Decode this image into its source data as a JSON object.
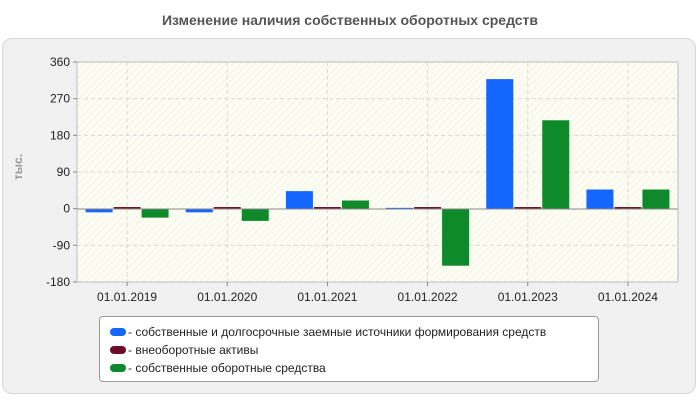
{
  "page": {
    "title": "Изменение наличия собственных оборотных средств"
  },
  "chart_data": {
    "type": "bar",
    "title": "Изменение наличия собственных оборотных средств",
    "xlabel": "",
    "ylabel": "тыс.",
    "ylim": [
      -180,
      360
    ],
    "yticks": [
      "360",
      "270",
      "180",
      "90",
      "0",
      "-90",
      "-180"
    ],
    "yticks_values": [
      360,
      270,
      180,
      90,
      0,
      -90,
      -180
    ],
    "grid": true,
    "legend_position": "bottom",
    "categories": [
      "01.01.2019",
      "01.01.2020",
      "01.01.2021",
      "01.01.2022",
      "01.01.2023",
      "01.01.2024"
    ],
    "series": [
      {
        "name": "собственные и долгосрочные заемные источники формирования средств",
        "color": "#1565ff",
        "values": [
          -9,
          -9,
          43,
          2,
          318,
          47
        ]
      },
      {
        "name": "внеоборотные активы",
        "color": "#6b0f2b",
        "values": [
          4,
          4,
          4,
          4,
          4,
          4
        ]
      },
      {
        "name": "собственные оборотные средства",
        "color": "#0f8a2a",
        "values": [
          -22,
          -30,
          20,
          -140,
          217,
          47
        ]
      }
    ]
  },
  "legend": {
    "items": [
      {
        "label": "- собственные и долгосрочные заемные источники формирования средств",
        "color": "#1565ff"
      },
      {
        "label": "- внеоборотные активы",
        "color": "#6b0f2b"
      },
      {
        "label": "- собственные оборотные средства",
        "color": "#0f8a2a"
      }
    ]
  }
}
